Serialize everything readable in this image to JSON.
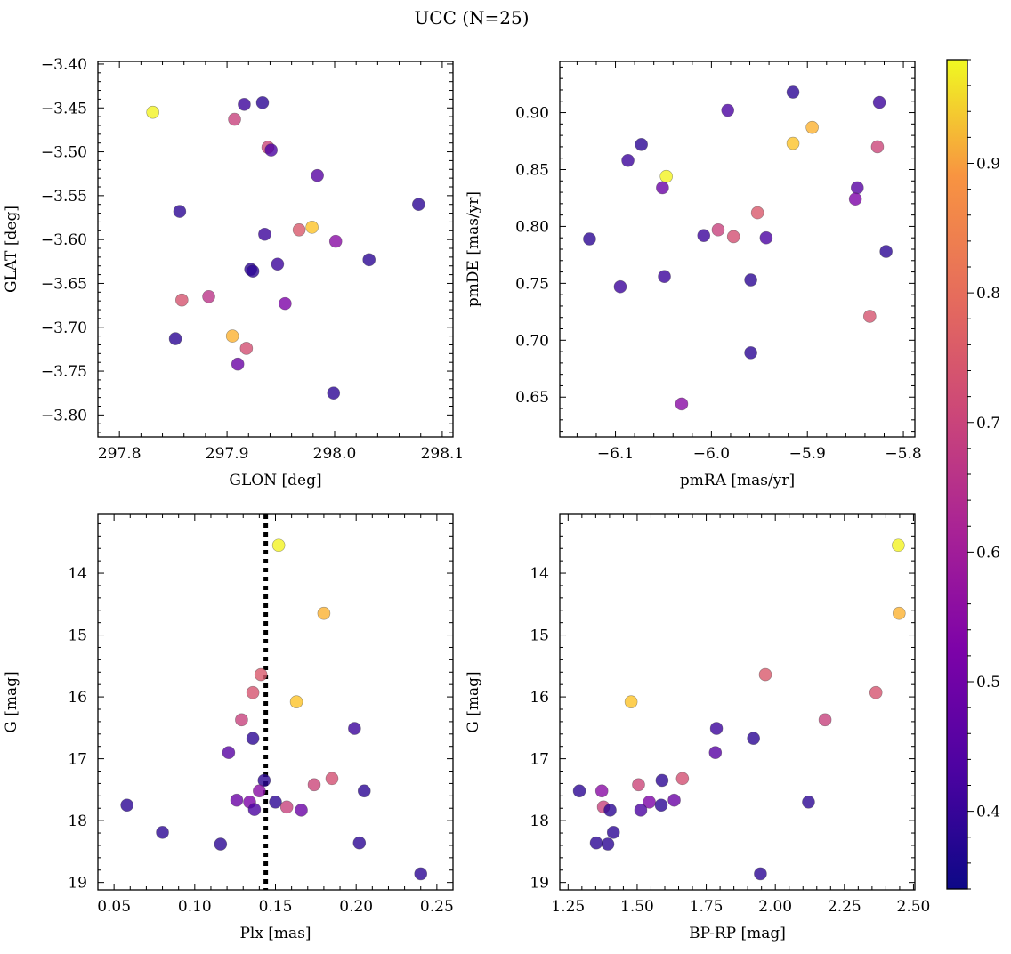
{
  "figure": {
    "title": "UCC (N=25)"
  },
  "colorbar": {
    "ticks": [
      "0.4",
      "0.5",
      "0.6",
      "0.7",
      "0.8",
      "0.9"
    ],
    "range": [
      0.34,
      0.98
    ]
  },
  "chart_data": [
    {
      "type": "scatter",
      "xlabel": "GLON [deg]",
      "ylabel": "GLAT [deg]",
      "xlim": [
        297.78,
        298.11
      ],
      "ylim": [
        -3.825,
        -3.397
      ],
      "y_inverted": false,
      "xticks": [
        "297.8",
        "297.9",
        "298.0",
        "298.1"
      ],
      "yticks": [
        "−3.80",
        "−3.75",
        "−3.70",
        "−3.65",
        "−3.60",
        "−3.55",
        "−3.50",
        "−3.45",
        "−3.40"
      ],
      "x": [
        297.831,
        297.907,
        297.916,
        297.933,
        297.938,
        297.941,
        297.984,
        297.856,
        298.078,
        297.935,
        297.967,
        297.979,
        298.001,
        297.922,
        297.924,
        297.947,
        298.032,
        297.883,
        297.858,
        297.954,
        297.852,
        297.905,
        297.918,
        297.91,
        297.999
      ],
      "y": [
        -3.455,
        -3.463,
        -3.446,
        -3.444,
        -3.495,
        -3.498,
        -3.527,
        -3.568,
        -3.56,
        -3.594,
        -3.589,
        -3.586,
        -3.602,
        -3.634,
        -3.636,
        -3.628,
        -3.623,
        -3.665,
        -3.669,
        -3.673,
        -3.713,
        -3.71,
        -3.724,
        -3.742,
        -3.775
      ],
      "c": [
        0.97,
        0.65,
        0.4,
        0.38,
        0.66,
        0.42,
        0.44,
        0.38,
        0.38,
        0.4,
        0.7,
        0.9,
        0.52,
        0.38,
        0.38,
        0.4,
        0.38,
        0.62,
        0.69,
        0.5,
        0.38,
        0.87,
        0.68,
        0.47,
        0.38
      ]
    },
    {
      "type": "scatter",
      "xlabel": "pmRA [mas/yr]",
      "ylabel": "pmDE [mas/yr]",
      "xlim": [
        -6.158,
        -5.788
      ],
      "ylim": [
        0.615,
        0.945
      ],
      "y_inverted": false,
      "xticks": [
        "−6.1",
        "−6.0",
        "−5.9",
        "−5.8"
      ],
      "yticks": [
        "0.65",
        "0.70",
        "0.75",
        "0.80",
        "0.85",
        "0.90"
      ],
      "x": [
        -5.915,
        -5.825,
        -5.983,
        -5.895,
        -5.915,
        -6.073,
        -6.087,
        -6.047,
        -5.827,
        -6.051,
        -5.848,
        -5.85,
        -6.127,
        -6.008,
        -5.993,
        -5.977,
        -5.952,
        -5.943,
        -5.818,
        -6.095,
        -6.049,
        -5.959,
        -5.835,
        -5.959,
        -6.031
      ],
      "y": [
        0.918,
        0.909,
        0.902,
        0.887,
        0.873,
        0.872,
        0.858,
        0.844,
        0.87,
        0.834,
        0.834,
        0.824,
        0.789,
        0.792,
        0.797,
        0.791,
        0.812,
        0.79,
        0.778,
        0.747,
        0.756,
        0.753,
        0.721,
        0.689,
        0.644
      ],
      "c": [
        0.38,
        0.4,
        0.42,
        0.87,
        0.9,
        0.38,
        0.4,
        0.97,
        0.66,
        0.47,
        0.44,
        0.5,
        0.38,
        0.4,
        0.65,
        0.68,
        0.7,
        0.42,
        0.38,
        0.4,
        0.4,
        0.38,
        0.69,
        0.38,
        0.52
      ]
    },
    {
      "type": "scatter",
      "xlabel": "Plx [mas]",
      "ylabel": "G [mag]",
      "xlim": [
        0.04,
        0.26
      ],
      "ylim": [
        19.12,
        13.05
      ],
      "y_inverted": true,
      "vline": 0.144,
      "xticks": [
        "0.05",
        "0.10",
        "0.15",
        "0.20",
        "0.25"
      ],
      "yticks": [
        "14",
        "15",
        "16",
        "17",
        "18",
        "19"
      ],
      "x": [
        0.152,
        0.18,
        0.141,
        0.136,
        0.163,
        0.129,
        0.199,
        0.136,
        0.121,
        0.185,
        0.174,
        0.143,
        0.14,
        0.205,
        0.126,
        0.134,
        0.15,
        0.137,
        0.157,
        0.166,
        0.058,
        0.08,
        0.116,
        0.202,
        0.24
      ],
      "y": [
        13.55,
        14.65,
        15.64,
        15.93,
        16.08,
        16.37,
        16.51,
        16.67,
        16.9,
        17.32,
        17.42,
        17.35,
        17.52,
        17.52,
        17.67,
        17.7,
        17.7,
        17.82,
        17.78,
        17.83,
        17.75,
        18.19,
        18.38,
        18.36,
        18.86
      ],
      "c": [
        0.97,
        0.87,
        0.7,
        0.69,
        0.9,
        0.65,
        0.4,
        0.38,
        0.44,
        0.68,
        0.66,
        0.38,
        0.52,
        0.38,
        0.47,
        0.5,
        0.38,
        0.42,
        0.65,
        0.47,
        0.38,
        0.38,
        0.38,
        0.38,
        0.38
      ]
    },
    {
      "type": "scatter",
      "xlabel": "BP-RP [mag]",
      "ylabel": "G [mag]",
      "xlim": [
        1.22,
        2.505
      ],
      "ylim": [
        19.12,
        13.05
      ],
      "y_inverted": true,
      "xticks": [
        "1.25",
        "1.50",
        "1.75",
        "2.00",
        "2.25",
        "2.50"
      ],
      "yticks": [
        "14",
        "15",
        "16",
        "17",
        "18",
        "19"
      ],
      "x": [
        2.445,
        2.448,
        1.964,
        2.364,
        1.478,
        2.18,
        1.787,
        1.921,
        1.783,
        1.664,
        1.505,
        1.59,
        1.291,
        1.372,
        1.634,
        1.544,
        1.378,
        1.587,
        1.513,
        1.402,
        2.12,
        1.414,
        1.352,
        1.394,
        1.946
      ],
      "y": [
        13.55,
        14.65,
        15.64,
        15.93,
        16.08,
        16.37,
        16.51,
        16.67,
        16.9,
        17.32,
        17.42,
        17.35,
        17.52,
        17.52,
        17.67,
        17.7,
        17.78,
        17.75,
        17.83,
        17.83,
        17.7,
        18.19,
        18.36,
        18.38,
        18.86
      ],
      "c": [
        0.97,
        0.87,
        0.7,
        0.69,
        0.9,
        0.65,
        0.4,
        0.38,
        0.44,
        0.68,
        0.66,
        0.38,
        0.38,
        0.52,
        0.47,
        0.5,
        0.65,
        0.38,
        0.42,
        0.38,
        0.38,
        0.38,
        0.38,
        0.38,
        0.38
      ]
    }
  ]
}
